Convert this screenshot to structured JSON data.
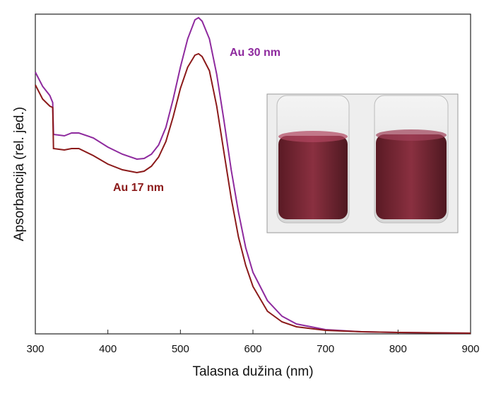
{
  "chart_data": {
    "type": "line",
    "x_label": "Talasna dužina (nm)",
    "y_label": "Apsorbancija (rel. jed.)",
    "x": [
      300,
      310,
      320,
      324,
      325,
      340,
      350,
      360,
      380,
      400,
      420,
      440,
      450,
      460,
      470,
      480,
      490,
      500,
      510,
      520,
      525,
      530,
      540,
      550,
      560,
      570,
      580,
      590,
      600,
      620,
      640,
      660,
      700,
      750,
      800,
      900
    ],
    "series": [
      {
        "name": "Au 30 nm",
        "color": "#8e2a9e",
        "values": [
          370,
          350,
          337,
          327,
          282,
          280,
          284,
          284,
          277,
          264,
          254,
          247,
          248,
          254,
          267,
          292,
          332,
          377,
          417,
          444,
          447,
          442,
          417,
          367,
          302,
          232,
          172,
          122,
          87,
          47,
          25,
          14,
          6,
          3,
          2,
          1
        ]
      },
      {
        "name": "Au 17 nm",
        "color": "#8b1a1a",
        "values": [
          352,
          332,
          322,
          320,
          262,
          260,
          262,
          262,
          252,
          240,
          232,
          228,
          230,
          237,
          250,
          272,
          307,
          347,
          377,
          394,
          396,
          392,
          372,
          322,
          257,
          192,
          137,
          97,
          67,
          32,
          17,
          10,
          5,
          3,
          2,
          1
        ]
      }
    ],
    "xlim": [
      300,
      900
    ],
    "xticks": [
      300,
      400,
      500,
      600,
      700,
      800,
      900
    ],
    "ylim": [
      0,
      452
    ]
  }
}
